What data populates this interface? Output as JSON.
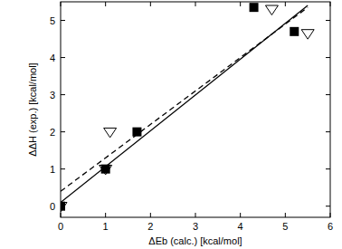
{
  "chart_data": {
    "type": "scatter",
    "xlabel": "ΔEb (calc.) [kcal/mol]",
    "ylabel": "ΔΔH (exp.) [kcal/mol]",
    "xlim": [
      0,
      6
    ],
    "ylim": [
      -0.3,
      5.5
    ],
    "xticks": [
      0,
      1,
      2,
      3,
      4,
      5,
      6
    ],
    "yticks": [
      0,
      1,
      2,
      3,
      4,
      5
    ],
    "series": [
      {
        "type": "scatter",
        "marker": "square",
        "color": "#000000",
        "x": [
          0,
          1,
          1.7,
          4.3,
          5.2
        ],
        "values": [
          0,
          1,
          2,
          5.35,
          4.7
        ]
      },
      {
        "type": "scatter",
        "marker": "triangle-down",
        "color": "#000000",
        "x": [
          0,
          1,
          1.1,
          4.7,
          5.5
        ],
        "values": [
          0,
          1,
          2,
          5.3,
          4.65
        ]
      },
      {
        "type": "line",
        "line_style": "solid",
        "color": "#000000",
        "x": [
          0,
          5.5
        ],
        "values": [
          0.1,
          5.4
        ]
      },
      {
        "type": "line",
        "line_style": "dashed",
        "color": "#000000",
        "x": [
          0,
          5.5
        ],
        "values": [
          0.4,
          5.35
        ]
      }
    ]
  }
}
